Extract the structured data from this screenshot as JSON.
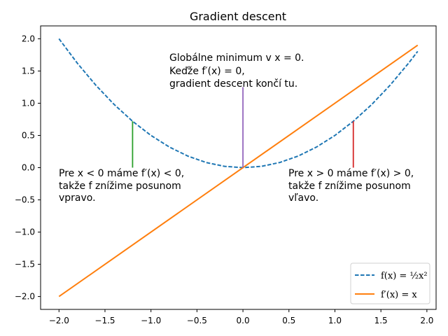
{
  "chart_data": {
    "type": "line",
    "title": "Gradient descent",
    "xlabel": "",
    "ylabel": "",
    "xlim": [
      -2.2,
      2.1
    ],
    "ylim": [
      -2.2,
      2.2
    ],
    "x_ticks": [
      -2.0,
      -1.5,
      -1.0,
      -0.5,
      0.0,
      0.5,
      1.0,
      1.5,
      2.0
    ],
    "y_ticks": [
      -2.0,
      -1.5,
      -1.0,
      -0.5,
      0.0,
      0.5,
      1.0,
      1.5,
      2.0
    ],
    "x_tick_labels": [
      "−2.0",
      "−1.5",
      "−1.0",
      "−0.5",
      "0.0",
      "0.5",
      "1.0",
      "1.5",
      "2.0"
    ],
    "y_tick_labels": [
      "−2.0",
      "−1.5",
      "−1.0",
      "−0.5",
      "0.0",
      "0.5",
      "1.0",
      "1.5",
      "2.0"
    ],
    "grid": false,
    "legend_position": "lower-right",
    "series": [
      {
        "name": "f(x) = ½x²",
        "style": "dashed",
        "color": "#1f77b4",
        "x": [
          -2.0,
          -1.8,
          -1.6,
          -1.4,
          -1.2,
          -1.0,
          -0.8,
          -0.6,
          -0.4,
          -0.2,
          0.0,
          0.2,
          0.4,
          0.6,
          0.8,
          1.0,
          1.2,
          1.4,
          1.6,
          1.8,
          1.9
        ],
        "y": [
          2.0,
          1.62,
          1.28,
          0.98,
          0.72,
          0.5,
          0.32,
          0.18,
          0.08,
          0.02,
          0.0,
          0.02,
          0.08,
          0.18,
          0.32,
          0.5,
          0.72,
          0.98,
          1.28,
          1.62,
          1.805
        ]
      },
      {
        "name": "f′(x) = x",
        "style": "solid",
        "color": "#ff7f0e",
        "x": [
          -2.0,
          1.9
        ],
        "y": [
          -2.0,
          1.9
        ]
      }
    ],
    "vlines": [
      {
        "x": -1.2,
        "y0": 0.0,
        "y1": 0.72,
        "color": "#2ca02c"
      },
      {
        "x": 0.0,
        "y0": 0.0,
        "y1": 1.25,
        "color": "#9467bd"
      },
      {
        "x": 1.2,
        "y0": 0.0,
        "y1": 0.72,
        "color": "#d62728"
      }
    ],
    "annotations": {
      "center": [
        "Globálne minimum v x = 0.",
        "Keďže f′(x) = 0,",
        "gradient descent končí tu."
      ],
      "left": [
        " Pre x < 0 máme f′(x) < 0,",
        "takže  f znížime posunom",
        "vpravo."
      ],
      "right": [
        " Pre x > 0 máme f′(x) > 0,",
        "takže  f znížime posunom",
        "vľavo."
      ]
    }
  }
}
